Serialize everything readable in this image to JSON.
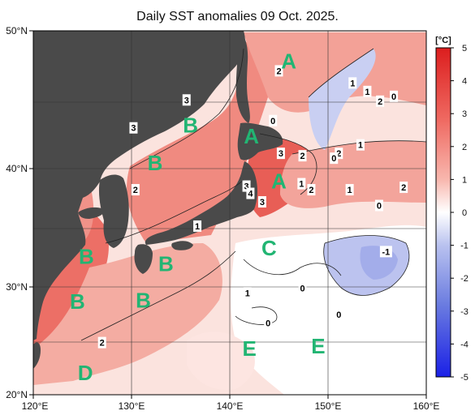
{
  "title": "Daily SST anomalies 09 Oct. 2025.",
  "colorbar": {
    "unit": "[°C]",
    "ticks": [
      "5",
      "4",
      "3",
      "2",
      "1",
      "0",
      "-1",
      "-2",
      "-3",
      "-4",
      "-5"
    ]
  },
  "lat_labels": [
    "50°N",
    "40°N",
    "30°N",
    "20°N"
  ],
  "lon_labels": [
    "120°E",
    "130°E",
    "140°E",
    "150°E",
    "160°E"
  ],
  "region_labels": [
    {
      "id": "A1",
      "text": "A",
      "lon": 146.0,
      "lat": 47.5
    },
    {
      "id": "A2",
      "text": "A",
      "lon": 142.2,
      "lat": 41.3
    },
    {
      "id": "A3",
      "text": "A",
      "lon": 145.0,
      "lat": 37.6
    },
    {
      "id": "B1",
      "text": "B",
      "lon": 136.0,
      "lat": 42.2
    },
    {
      "id": "B2",
      "text": "B",
      "lon": 132.4,
      "lat": 39.1
    },
    {
      "id": "B3",
      "text": "B",
      "lon": 125.4,
      "lat": 31.4
    },
    {
      "id": "B4",
      "text": "B",
      "lon": 133.5,
      "lat": 30.8
    },
    {
      "id": "B5",
      "text": "B",
      "lon": 124.5,
      "lat": 27.7
    },
    {
      "id": "B6",
      "text": "B",
      "lon": 131.2,
      "lat": 27.8
    },
    {
      "id": "C",
      "text": "C",
      "lon": 144.0,
      "lat": 32.1
    },
    {
      "id": "D",
      "text": "D",
      "lon": 125.3,
      "lat": 21.8
    },
    {
      "id": "E1",
      "text": "E",
      "lon": 142.0,
      "lat": 23.8
    },
    {
      "id": "E2",
      "text": "E",
      "lon": 149.0,
      "lat": 24.0
    }
  ],
  "contour_labels": [
    {
      "text": "2",
      "lon": 145.0,
      "lat": 46.7
    },
    {
      "text": "3",
      "lon": 135.6,
      "lat": 44.3
    },
    {
      "text": "3",
      "lon": 130.2,
      "lat": 42.0
    },
    {
      "text": "0",
      "lon": 144.4,
      "lat": 42.6
    },
    {
      "text": "1",
      "lon": 152.5,
      "lat": 45.7
    },
    {
      "text": "1",
      "lon": 154.0,
      "lat": 45.0
    },
    {
      "text": "0",
      "lon": 156.7,
      "lat": 44.6
    },
    {
      "text": "2",
      "lon": 155.3,
      "lat": 44.2
    },
    {
      "text": "3",
      "lon": 145.2,
      "lat": 39.9
    },
    {
      "text": "2",
      "lon": 147.4,
      "lat": 39.7
    },
    {
      "text": "2",
      "lon": 151.1,
      "lat": 39.9
    },
    {
      "text": "1",
      "lon": 153.3,
      "lat": 40.6
    },
    {
      "text": "0",
      "lon": 150.6,
      "lat": 39.5
    },
    {
      "text": "2",
      "lon": 130.4,
      "lat": 36.9
    },
    {
      "text": "3",
      "lon": 141.7,
      "lat": 37.2
    },
    {
      "text": "4",
      "lon": 142.1,
      "lat": 36.6
    },
    {
      "text": "3",
      "lon": 143.3,
      "lat": 35.9
    },
    {
      "text": "1",
      "lon": 147.3,
      "lat": 37.4
    },
    {
      "text": "2",
      "lon": 148.3,
      "lat": 36.9
    },
    {
      "text": "1",
      "lon": 152.2,
      "lat": 36.9
    },
    {
      "text": "2",
      "lon": 157.7,
      "lat": 37.1
    },
    {
      "text": "0",
      "lon": 155.2,
      "lat": 35.6
    },
    {
      "text": "1",
      "lon": 136.7,
      "lat": 33.9
    },
    {
      "text": "-1",
      "lon": 155.9,
      "lat": 31.8
    },
    {
      "text": "0",
      "lon": 147.4,
      "lat": 28.8
    },
    {
      "text": "1",
      "lon": 141.8,
      "lat": 28.4
    },
    {
      "text": "0",
      "lon": 143.9,
      "lat": 25.9
    },
    {
      "text": "0",
      "lon": 151.1,
      "lat": 26.6
    },
    {
      "text": "2",
      "lon": 127.0,
      "lat": 24.3
    }
  ]
}
